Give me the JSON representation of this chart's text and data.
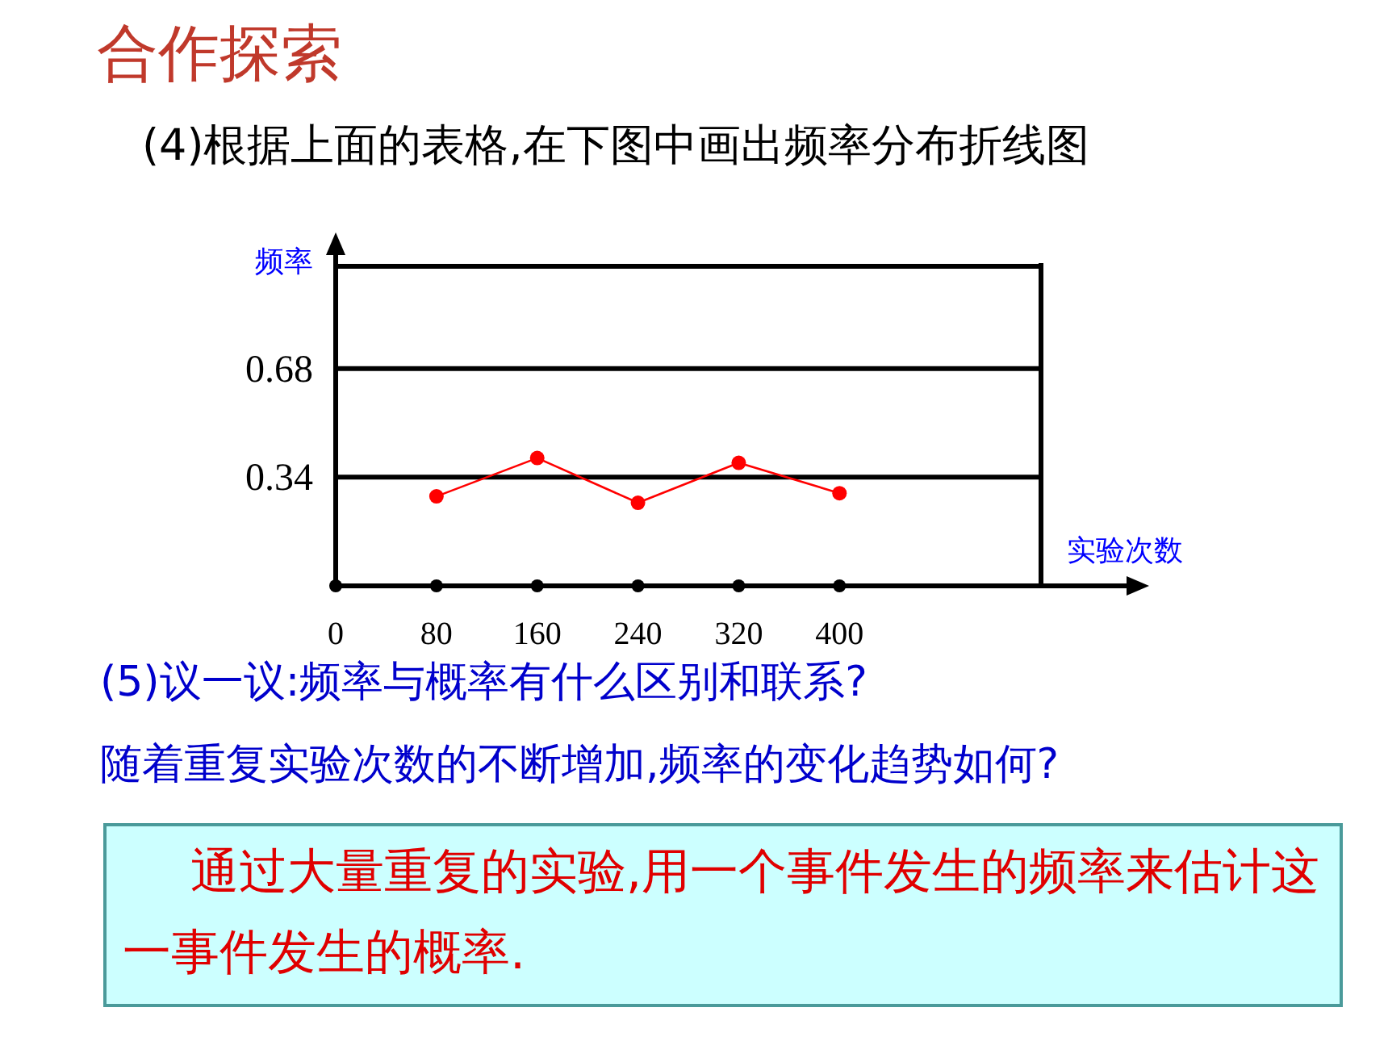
{
  "chart_data": {
    "type": "line",
    "title": "合作探索",
    "subtitle": "(4)根据上面的表格,在下图中画出频率分布折线图",
    "xlabel": "实验次数",
    "ylabel": "频率",
    "x": [
      80,
      160,
      240,
      320,
      400
    ],
    "series": [
      {
        "color": "#ff0000",
        "values": [
          0.28,
          0.4,
          0.26,
          0.385,
          0.29
        ]
      }
    ],
    "xlim": [
      0,
      560
    ],
    "xticks": [
      0,
      80,
      160,
      240,
      320,
      400
    ],
    "ylim": [
      0,
      1
    ],
    "yticks": [
      0.34,
      0.68,
      {
        "value": 1,
        "label": null
      }
    ],
    "grid": "y",
    "marker": "circle",
    "line_style": "solid",
    "annotations": [
      "(5)议一议:频率与概率有什么区别和联系?",
      "随着重复实验次数的不断增加,频率的变化趋势如何?",
      "通过大量重复的实验,用一个事件发生的频率来估计这一事件发生的概率."
    ]
  }
}
